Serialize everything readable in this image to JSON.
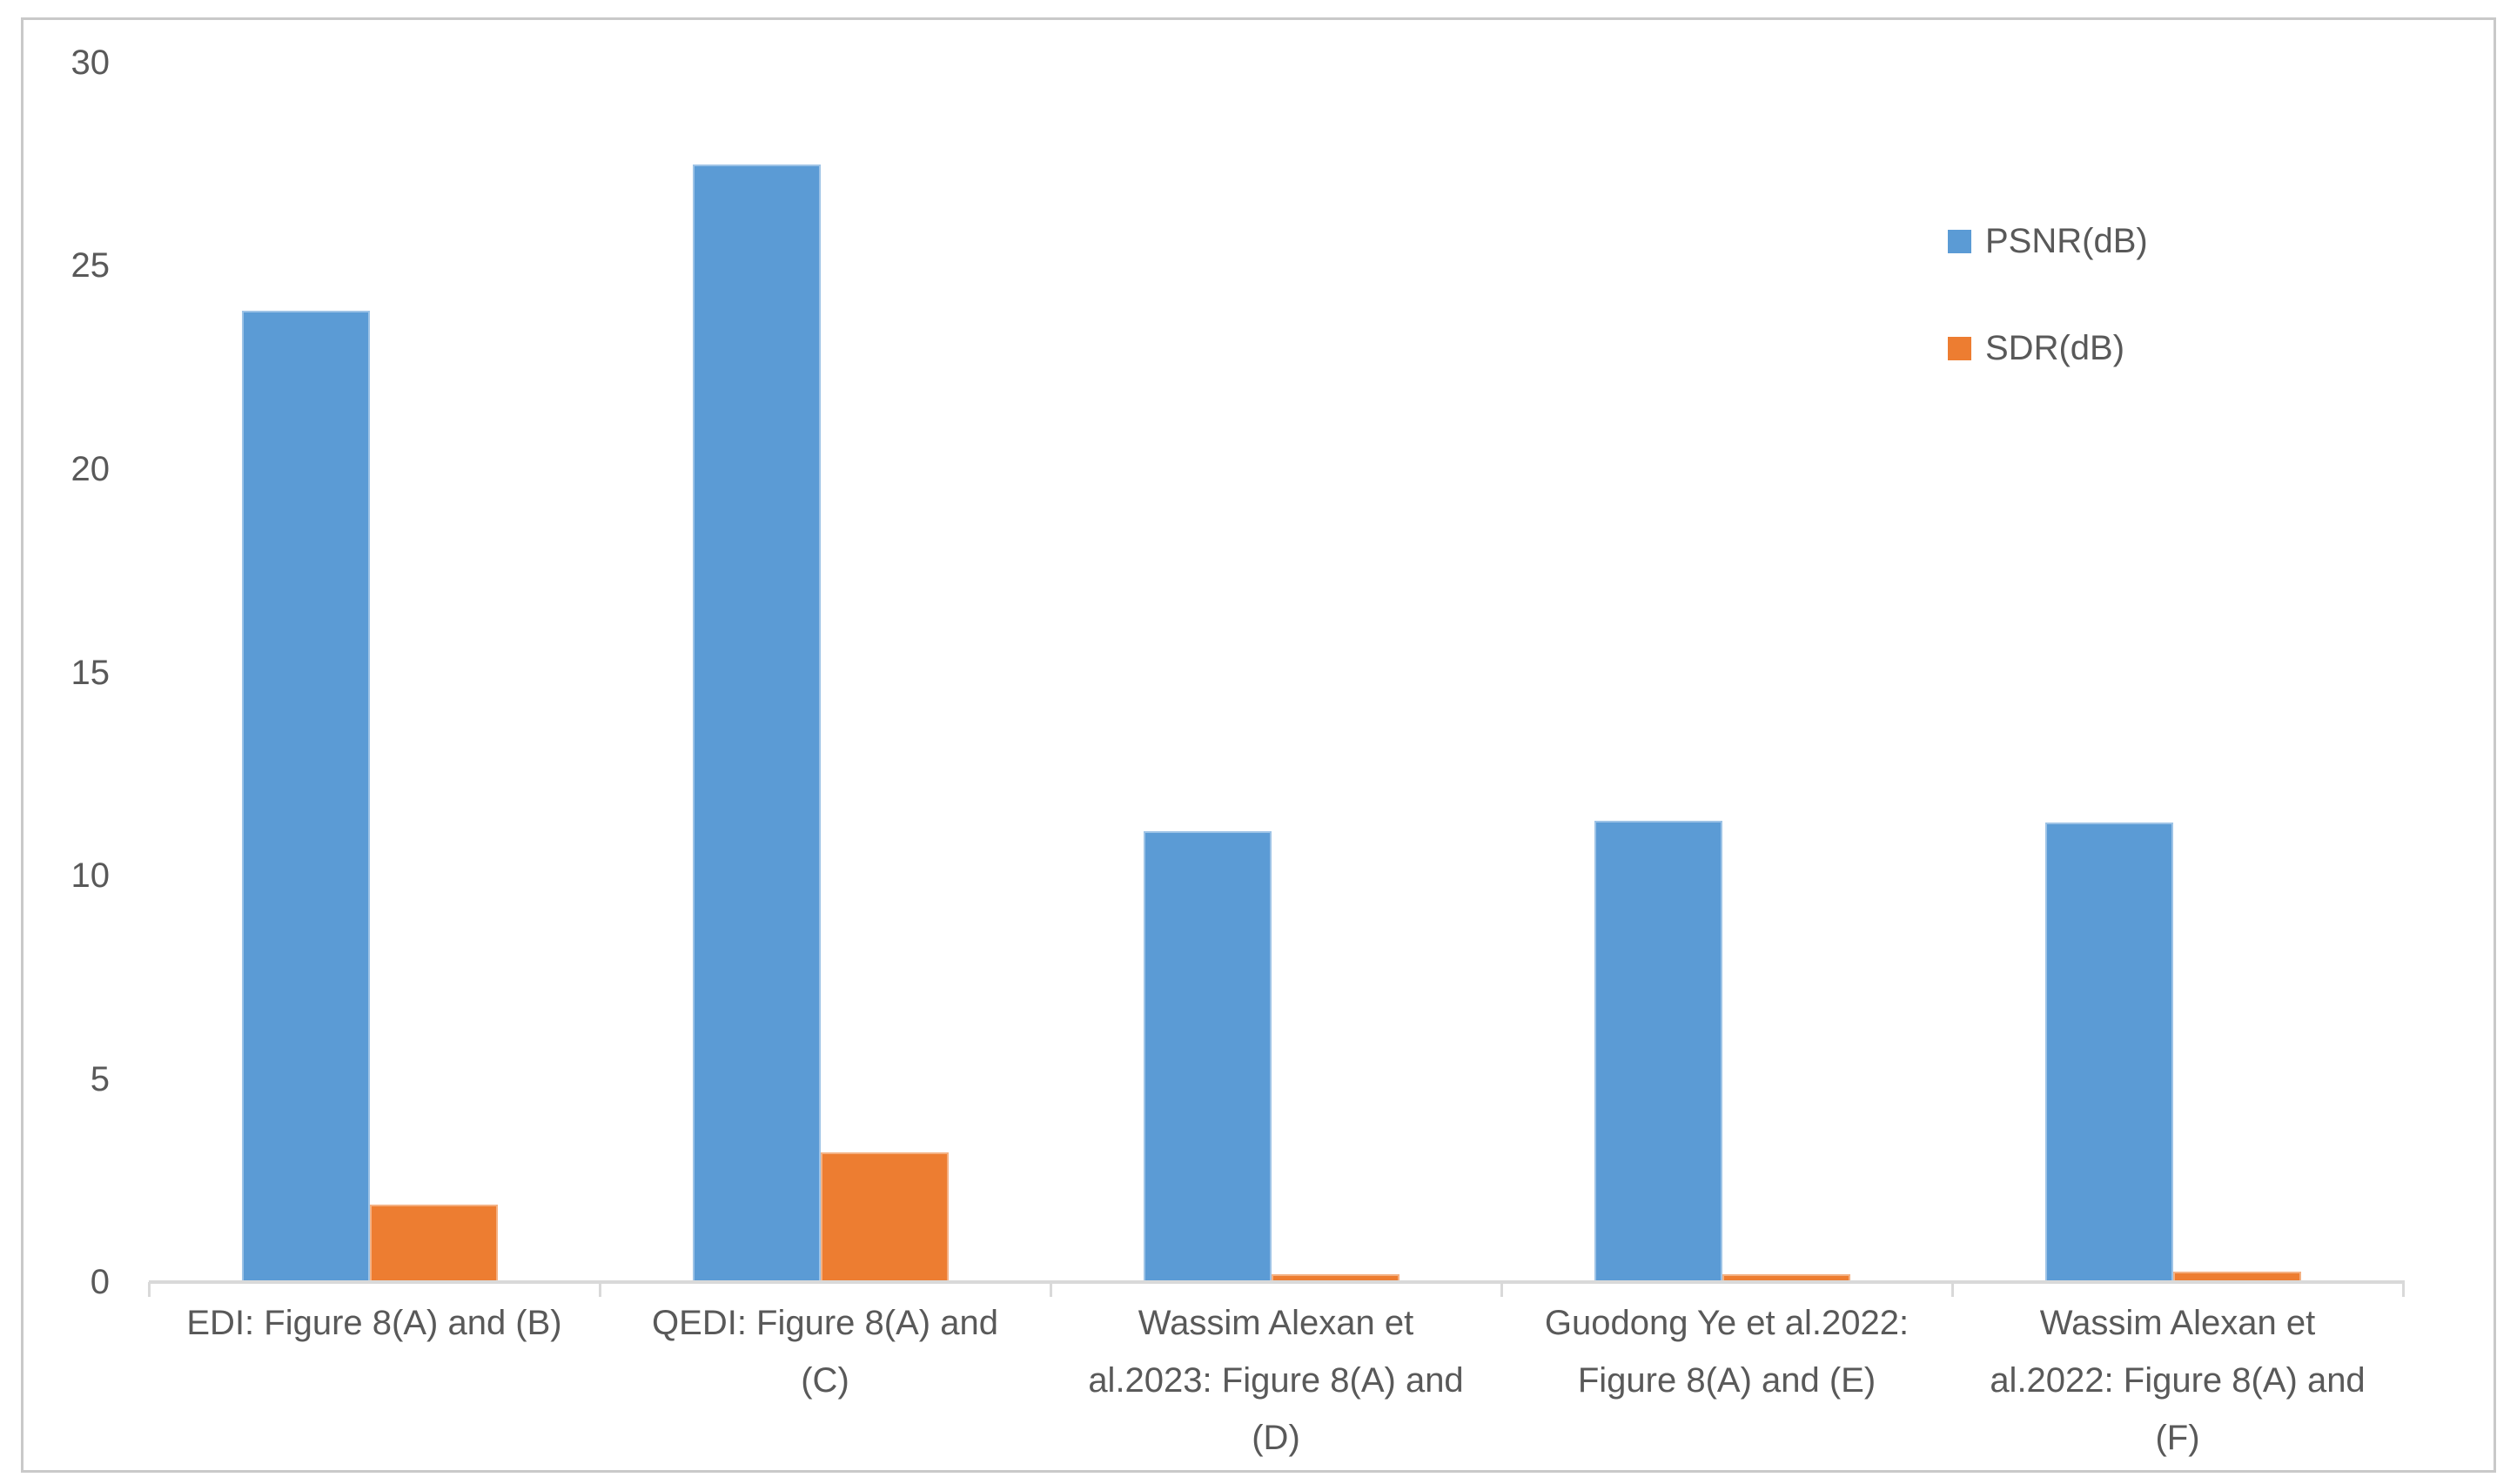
{
  "chart_data": {
    "type": "bar",
    "title": "",
    "xlabel": "",
    "ylabel": "",
    "categories": [
      "EDI: Figure 8(A) and (B)",
      "QEDI: Figure 8(A) and (C)",
      "Wassim Alexan et al.2023: Figure 8(A) and (D)",
      "Guodong Ye et al.2022: Figure 8(A) and (E)",
      "Wassim Alexan et al.2022: Figure 8(A) and (F)"
    ],
    "category_label_lines": [
      [
        "EDI: Figure 8(A) and (B)"
      ],
      [
        "QEDI: Figure 8(A) and",
        "(C)"
      ],
      [
        "Wassim Alexan et",
        "al.2023: Figure 8(A) and",
        "(D)"
      ],
      [
        "Guodong Ye et al.2022:",
        "Figure 8(A) and (E)"
      ],
      [
        "Wassim Alexan et",
        "al.2022: Figure 8(A) and",
        "(F)"
      ]
    ],
    "series": [
      {
        "name": "PSNR(dB)",
        "color": "#5B9BD5",
        "border_color": "#9DC3E6",
        "values": [
          23.9,
          27.5,
          11.1,
          11.35,
          11.3
        ]
      },
      {
        "name": "SDR(dB)",
        "color": "#ED7D31",
        "border_color": "#F4B183",
        "values": [
          1.9,
          3.2,
          0.2,
          0.2,
          0.25
        ]
      }
    ],
    "ylim": [
      0,
      30
    ],
    "y_ticks": [
      0,
      5,
      10,
      15,
      20,
      25,
      30
    ],
    "grid": false,
    "legend_position": "upper-right"
  },
  "colors": {
    "background": "#FFFFFF",
    "frame": "#C9C9C9",
    "axis": "#D9D9D9",
    "text": "#595959"
  }
}
